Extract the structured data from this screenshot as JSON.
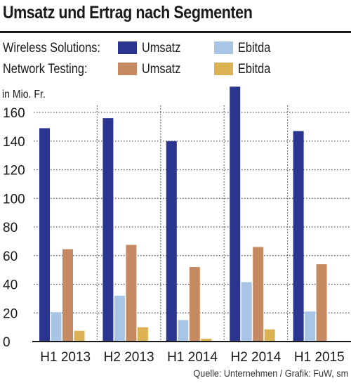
{
  "title": "Umsatz und Ertrag nach Segmenten",
  "legend": [
    {
      "group": "Wireless Solutions:",
      "entries": [
        {
          "label": "Umsatz",
          "color": "#2a358f"
        },
        {
          "label": "Ebitda",
          "color": "#a8c5e6"
        }
      ]
    },
    {
      "group": "Network Testing:",
      "entries": [
        {
          "label": "Umsatz",
          "color": "#c58a62"
        },
        {
          "label": "Ebitda",
          "color": "#dbb355"
        }
      ]
    }
  ],
  "unit_label": "in Mio. Fr.",
  "source": "Quelle: Unternehmen / Grafik: FuW, sm",
  "chart_data": {
    "type": "bar",
    "categories": [
      "H1 2013",
      "H2 2013",
      "H1 2014",
      "H2 2014",
      "H1 2015"
    ],
    "series": [
      {
        "name": "Wireless Solutions: Umsatz",
        "color": "#2a358f",
        "values": [
          149,
          156,
          140,
          178,
          147
        ]
      },
      {
        "name": "Wireless Solutions: Ebitda",
        "color": "#a8c5e6",
        "values": [
          20.5,
          32,
          15,
          41.5,
          21
        ]
      },
      {
        "name": "Network Testing: Umsatz",
        "color": "#c58a62",
        "values": [
          64.5,
          67.5,
          52,
          66,
          54
        ]
      },
      {
        "name": "Network Testing: Ebitda",
        "color": "#dbb355",
        "values": [
          7.5,
          10,
          2,
          8.5,
          0.5
        ]
      }
    ],
    "yticks": [
      0,
      20,
      40,
      60,
      80,
      100,
      120,
      140,
      160
    ],
    "ylim": [
      0,
      175
    ],
    "grid": "horizontal-dotted",
    "ylabel": "in Mio. Fr."
  }
}
